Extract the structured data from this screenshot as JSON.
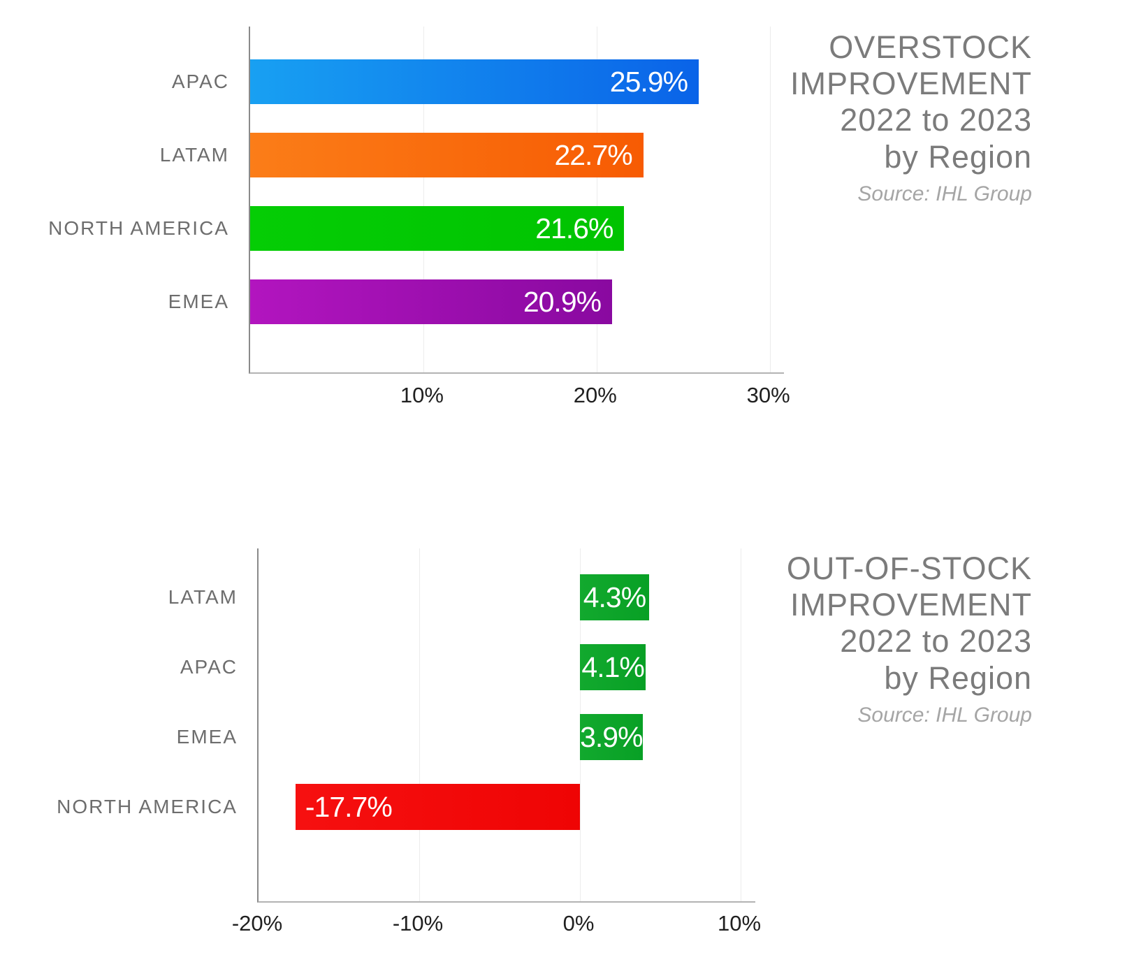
{
  "background": "#FFFFFF",
  "styles": {
    "title_color": "#7B7B7B",
    "source_color": "#A5A5A5",
    "category_label_color": "#6D6D6D",
    "tick_label_color": "#202020",
    "gridline_color": "#ECECEC",
    "y_axis_color": "#8A8A8A",
    "x_baseline_color": "#B3B3B3",
    "value_label_color": "#FFFFFF"
  },
  "chart_data": [
    {
      "id": "overstock-improvement",
      "type": "bar",
      "orientation": "horizontal",
      "title": "OVERSTOCK\nIMPROVEMENT\n2022 to 2023\nby Region",
      "source": "Source: IHL Group",
      "categories": [
        "APAC",
        "LATAM",
        "NORTH AMERICA",
        "EMEA"
      ],
      "values": [
        25.9,
        22.7,
        21.6,
        20.9
      ],
      "value_labels": [
        "25.9%",
        "22.7%",
        "21.6%",
        "20.9%"
      ],
      "bar_colors": [
        [
          "#18A0F2",
          "#0A63E8"
        ],
        [
          "#FB7D18",
          "#F75B03"
        ],
        [
          "#05CD05",
          "#00C301"
        ],
        [
          "#B215BF",
          "#8909A0"
        ]
      ],
      "xlim": [
        0,
        30.9
      ],
      "ticks": [
        {
          "v": 10,
          "label": "10%"
        },
        {
          "v": 20,
          "label": "20%"
        },
        {
          "v": 30,
          "label": "30%"
        }
      ],
      "grid": true,
      "legend": "none"
    },
    {
      "id": "out-of-stock-improvement",
      "type": "bar",
      "orientation": "horizontal",
      "title": "OUT-OF-STOCK\nIMPROVEMENT\n2022 to 2023\nby Region",
      "source": "Source: IHL Group",
      "categories": [
        "LATAM",
        "APAC",
        "EMEA",
        "NORTH AMERICA"
      ],
      "values": [
        4.3,
        4.1,
        3.9,
        -17.7
      ],
      "value_labels": [
        "4.3%",
        "4.1%",
        "3.9%",
        "-17.7%"
      ],
      "bar_colors": [
        [
          "#12A92E",
          "#08A025"
        ],
        [
          "#12A92E",
          "#08A025"
        ],
        [
          "#12A92E",
          "#08A025"
        ],
        [
          "#F61010",
          "#EF0404"
        ]
      ],
      "xlim": [
        -20,
        11
      ],
      "ticks": [
        {
          "v": -20,
          "label": "-20%"
        },
        {
          "v": -10,
          "label": "-10%"
        },
        {
          "v": 0,
          "label": "0%"
        },
        {
          "v": 10,
          "label": "10%"
        }
      ],
      "grid": true,
      "legend": "none"
    }
  ]
}
